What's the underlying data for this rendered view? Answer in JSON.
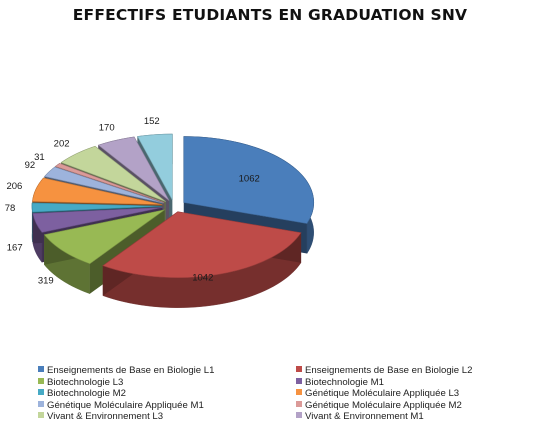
{
  "chart_data": {
    "type": "pie",
    "style": "3d-exploded",
    "title": "EFFECTIFS ETUDIANTS EN GRADUATION SNV",
    "legend_position": "bottom",
    "slices": [
      {
        "label": "Enseignements de Base en Biologie L1",
        "value": 1062,
        "color": "#4A7EBB"
      },
      {
        "label": "Enseignements de Base en Biologie L2",
        "value": 1042,
        "color": "#BE4B48"
      },
      {
        "label": "Biotechnologie L3",
        "value": 319,
        "color": "#98B954"
      },
      {
        "label": "Biotechnologie M1",
        "value": 167,
        "color": "#7D60A0"
      },
      {
        "label": "Biotechnologie M2",
        "value": 78,
        "color": "#46AAC5"
      },
      {
        "label": "Génétique Moléculaire Appliquée L3",
        "value": 206,
        "color": "#F69240"
      },
      {
        "label": "Génétique Moléculaire Appliquée M1",
        "value": 92,
        "color": "#9DB3DC"
      },
      {
        "label": "Génétique Moléculaire Appliquée M2",
        "value": 31,
        "color": "#DB9A98"
      },
      {
        "label": "Vivant & Environnement L3",
        "value": 202,
        "color": "#C3D69B"
      },
      {
        "label": "Vivant & Environnement M1",
        "value": 170,
        "color": "#B3A2C7"
      },
      {
        "label": "",
        "value": 152,
        "color": "#93CDDD"
      }
    ]
  }
}
